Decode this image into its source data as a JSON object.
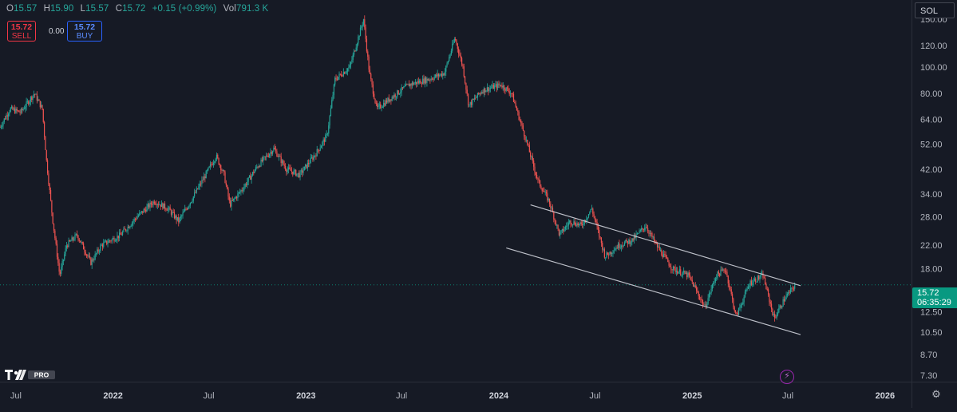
{
  "legend": {
    "open_key": "O",
    "open": "15.57",
    "high_key": "H",
    "high": "15.90",
    "low_key": "L",
    "low": "15.57",
    "close_key": "C",
    "close": "15.72",
    "change": "+0.15 (+0.99%)",
    "vol_key": "Vol",
    "volume": "791.3 K"
  },
  "trade": {
    "sell_price": "15.72",
    "sell_label": "SELL",
    "spread": "0.00",
    "buy_price": "15.72",
    "buy_label": "BUY"
  },
  "symbol": "SOL",
  "price_tag": {
    "price": "15.72",
    "countdown": "06:35:29"
  },
  "logo_text": "PRO",
  "icons": {
    "flash": "flash-icon",
    "settings": "gear-icon",
    "logo": "tradingview-logo-icon"
  },
  "colors": {
    "background": "#161a25",
    "up": "#26a69a",
    "down": "#ef5350",
    "sell": "#f23645",
    "buy": "#2962ff",
    "tag": "#089981",
    "axis_text": "#b2b5be"
  },
  "chart_data": {
    "type": "candlestick",
    "scale": "log",
    "ylim": [
      7.0,
      165
    ],
    "xlim": [
      "2021-06-01",
      "2026-02-20"
    ],
    "y_ticks": [
      {
        "value": 150,
        "label": "150.00"
      },
      {
        "value": 120,
        "label": "120.00"
      },
      {
        "value": 100,
        "label": "100.00"
      },
      {
        "value": 80,
        "label": "80.00"
      },
      {
        "value": 64,
        "label": "64.00"
      },
      {
        "value": 52,
        "label": "52.00"
      },
      {
        "value": 42,
        "label": "42.00"
      },
      {
        "value": 34,
        "label": "34.00"
      },
      {
        "value": 28,
        "label": "28.00"
      },
      {
        "value": 22,
        "label": "22.00"
      },
      {
        "value": 18,
        "label": "18.00"
      },
      {
        "value": 12.5,
        "label": "12.50"
      },
      {
        "value": 10.5,
        "label": "10.50"
      },
      {
        "value": 8.7,
        "label": "8.70"
      },
      {
        "value": 7.3,
        "label": "7.30"
      }
    ],
    "x_ticks": [
      {
        "date": "2021-07-01",
        "label": "Jul",
        "bold": false
      },
      {
        "date": "2022-01-01",
        "label": "2022",
        "bold": true
      },
      {
        "date": "2022-07-01",
        "label": "Jul",
        "bold": false
      },
      {
        "date": "2023-01-01",
        "label": "2023",
        "bold": true
      },
      {
        "date": "2023-07-01",
        "label": "Jul",
        "bold": false
      },
      {
        "date": "2024-01-01",
        "label": "2024",
        "bold": true
      },
      {
        "date": "2024-07-01",
        "label": "Jul",
        "bold": false
      },
      {
        "date": "2025-01-01",
        "label": "2025",
        "bold": true
      },
      {
        "date": "2025-07-01",
        "label": "Jul",
        "bold": false
      },
      {
        "date": "2026-01-01",
        "label": "2026",
        "bold": true
      }
    ],
    "last_price": 15.72,
    "price_path": [
      [
        "2021-06-01",
        60
      ],
      [
        "2021-06-20",
        70
      ],
      [
        "2021-07-10",
        68
      ],
      [
        "2021-08-05",
        80
      ],
      [
        "2021-08-20",
        70
      ],
      [
        "2021-08-28",
        45
      ],
      [
        "2021-09-08",
        28
      ],
      [
        "2021-09-22",
        17
      ],
      [
        "2021-10-05",
        22
      ],
      [
        "2021-10-25",
        24
      ],
      [
        "2021-11-20",
        19
      ],
      [
        "2021-12-10",
        22
      ],
      [
        "2022-01-15",
        24
      ],
      [
        "2022-02-15",
        28
      ],
      [
        "2022-03-20",
        32
      ],
      [
        "2022-04-15",
        30
      ],
      [
        "2022-05-05",
        27
      ],
      [
        "2022-06-01",
        33
      ],
      [
        "2022-06-25",
        40
      ],
      [
        "2022-07-15",
        47
      ],
      [
        "2022-07-30",
        40
      ],
      [
        "2022-08-10",
        31
      ],
      [
        "2022-09-05",
        36
      ],
      [
        "2022-10-01",
        43
      ],
      [
        "2022-11-01",
        50
      ],
      [
        "2022-11-25",
        42
      ],
      [
        "2022-12-20",
        40
      ],
      [
        "2023-01-20",
        48
      ],
      [
        "2023-02-10",
        56
      ],
      [
        "2023-02-25",
        90
      ],
      [
        "2023-03-25",
        100
      ],
      [
        "2023-04-20",
        150
      ],
      [
        "2023-05-01",
        95
      ],
      [
        "2023-05-15",
        70
      ],
      [
        "2023-06-15",
        78
      ],
      [
        "2023-07-15",
        86
      ],
      [
        "2023-08-20",
        90
      ],
      [
        "2023-09-20",
        95
      ],
      [
        "2023-10-10",
        128
      ],
      [
        "2023-10-25",
        100
      ],
      [
        "2023-11-05",
        72
      ],
      [
        "2023-12-01",
        82
      ],
      [
        "2024-01-05",
        86
      ],
      [
        "2024-01-25",
        80
      ],
      [
        "2024-02-20",
        55
      ],
      [
        "2024-03-15",
        38
      ],
      [
        "2024-04-05",
        32
      ],
      [
        "2024-04-25",
        24
      ],
      [
        "2024-05-15",
        27
      ],
      [
        "2024-06-05",
        26
      ],
      [
        "2024-06-25",
        30
      ],
      [
        "2024-07-20",
        20
      ],
      [
        "2024-08-15",
        22
      ],
      [
        "2024-09-10",
        23
      ],
      [
        "2024-10-05",
        26
      ],
      [
        "2024-10-25",
        22
      ],
      [
        "2024-11-25",
        18
      ],
      [
        "2024-12-25",
        17
      ],
      [
        "2025-01-25",
        13
      ],
      [
        "2025-02-15",
        17
      ],
      [
        "2025-03-05",
        18
      ],
      [
        "2025-03-25",
        12
      ],
      [
        "2025-04-20",
        16
      ],
      [
        "2025-05-15",
        17
      ],
      [
        "2025-06-05",
        11.8
      ],
      [
        "2025-06-25",
        14
      ],
      [
        "2025-07-15",
        15.72
      ]
    ],
    "channel": {
      "upper": [
        [
          "2024-03-01",
          31
        ],
        [
          "2025-07-25",
          15.6
        ]
      ],
      "lower": [
        [
          "2024-01-15",
          21.5
        ],
        [
          "2025-07-25",
          10.3
        ]
      ]
    }
  }
}
